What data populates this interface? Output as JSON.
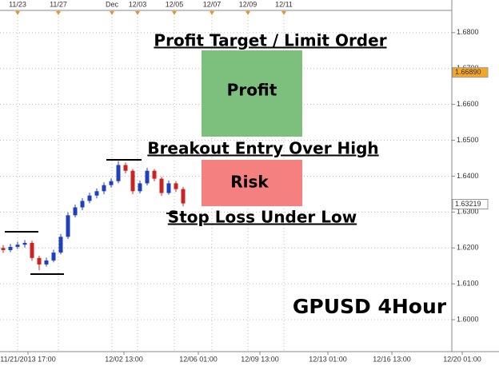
{
  "chart_data": {
    "type": "candlestick",
    "title": "GPUSD 4Hour",
    "open": [
      1.62,
      1.6194,
      1.6203,
      1.6209,
      1.6214,
      1.6172,
      1.6154,
      1.6165,
      1.6187,
      1.6231,
      1.6291,
      1.6313,
      1.6331,
      1.6346,
      1.6358,
      1.6375,
      1.6386,
      1.6431,
      1.6415,
      1.6358,
      1.638,
      1.6415,
      1.6393,
      1.6353,
      1.638,
      1.6364
    ],
    "high": [
      1.6208,
      1.6211,
      1.6217,
      1.6222,
      1.622,
      1.6178,
      1.6173,
      1.6195,
      1.6239,
      1.6299,
      1.6321,
      1.6339,
      1.6354,
      1.6366,
      1.6383,
      1.6394,
      1.6442,
      1.6438,
      1.642,
      1.6388,
      1.6423,
      1.642,
      1.6398,
      1.6388,
      1.6386,
      1.637
    ],
    "low": [
      1.6186,
      1.6188,
      1.6197,
      1.6201,
      1.6164,
      1.6138,
      1.6148,
      1.616,
      1.6182,
      1.6225,
      1.6285,
      1.6305,
      1.6325,
      1.6338,
      1.635,
      1.6368,
      1.638,
      1.6408,
      1.635,
      1.6352,
      1.6374,
      1.6386,
      1.6345,
      1.6348,
      1.6356,
      1.6316
    ],
    "close": [
      1.6194,
      1.6203,
      1.6209,
      1.6214,
      1.6172,
      1.6154,
      1.6165,
      1.6187,
      1.6231,
      1.6291,
      1.6313,
      1.6331,
      1.6346,
      1.6358,
      1.6375,
      1.6386,
      1.6431,
      1.6415,
      1.6358,
      1.638,
      1.6415,
      1.6393,
      1.6353,
      1.638,
      1.6364,
      1.6324
    ],
    "up_color": "#1f3fbf",
    "down_color": "#cc2222",
    "ylim": [
      1.5911,
      1.6862
    ],
    "yticks": [
      {
        "value": 1.6,
        "label": "1.6000"
      },
      {
        "value": 1.61,
        "label": "1.6100"
      },
      {
        "value": 1.62,
        "label": "1.6200"
      },
      {
        "value": 1.63,
        "label": "1.6300"
      },
      {
        "value": 1.64,
        "label": "1.6400"
      },
      {
        "value": 1.65,
        "label": "1.6500"
      },
      {
        "value": 1.66,
        "label": "1.6600"
      },
      {
        "value": 1.67,
        "label": "1.6700"
      },
      {
        "value": 1.68,
        "label": "1.6800"
      }
    ],
    "price_markers": [
      {
        "value": 1.6689,
        "label": "1.66890",
        "color": "#f5a623"
      },
      {
        "value": 1.63219,
        "label": "1.63219",
        "color": "#ffffff"
      }
    ],
    "top_x_labels": [
      "11/23",
      "11/27",
      "Dec",
      "12/03",
      "12/05",
      "12/07",
      "12/09",
      "12/11"
    ],
    "bottom_x_labels": [
      "11/21/2013 17:00",
      "12/02 13:00",
      "12/06 01:00",
      "12/09 13:00",
      "12/13 01:00",
      "12/16 13:00",
      "12/20 01:00"
    ],
    "annotations": [
      "Profit Target / Limit Order",
      "Profit",
      "Breakout Entry Over High",
      "Risk",
      "Stop Loss Under Low"
    ],
    "grid": true
  }
}
